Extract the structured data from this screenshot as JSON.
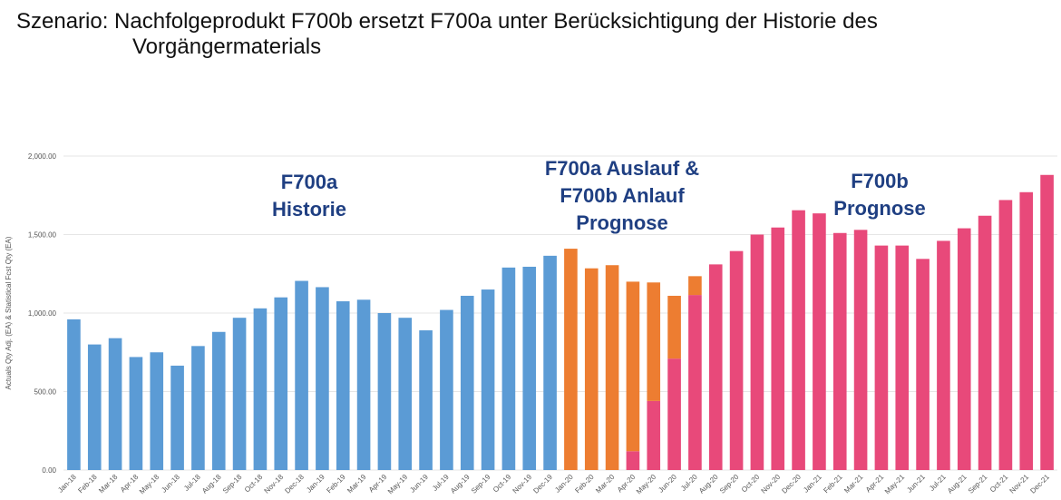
{
  "headline": {
    "line1": "Szenario:  Nachfolgeprodukt  F700b ersetzt F700a unter Berücksichtigung  der Historie des",
    "line2": "Vorgängermaterials"
  },
  "colors": {
    "historie": "#5b9bd5",
    "auslauf": "#ed7d31",
    "anlauf": "#e8497a",
    "grid": "#e6e6e6",
    "annotation": "#1f3f82"
  },
  "chart_data": {
    "type": "bar",
    "stacked": true,
    "ylabel": "Actuals Qty Adj. (EA) & Statistical Fcst Qty (EA)",
    "ylim": [
      0,
      2000
    ],
    "yticks": [
      "0.00",
      "500.00",
      "1,000.00",
      "1,500.00",
      "2,000.00"
    ],
    "grid": true,
    "categories": [
      "Jan-18",
      "Feb-18",
      "Mar-18",
      "Apr-18",
      "May-18",
      "Jun-18",
      "Jul-18",
      "Aug-18",
      "Sep-18",
      "Oct-18",
      "Nov-18",
      "Dec-18",
      "Jan-19",
      "Feb-19",
      "Mar-19",
      "Apr-19",
      "May-19",
      "Jun-19",
      "Jul-19",
      "Aug-19",
      "Sep-19",
      "Oct-19",
      "Nov-19",
      "Dec-19",
      "Jan-20",
      "Feb-20",
      "Mar-20",
      "Apr-20",
      "May-20",
      "Jun-20",
      "Jul-20",
      "Aug-20",
      "Sep-20",
      "Oct-20",
      "Nov-20",
      "Dec-20",
      "Jan-21",
      "Feb-21",
      "Mar-21",
      "Apr-21",
      "May-21",
      "Jun-21",
      "Jul-21",
      "Aug-21",
      "Sep-21",
      "Oct-21",
      "Nov-21",
      "Dec-21"
    ],
    "series": [
      {
        "key": "historie",
        "values": [
          960,
          800,
          840,
          720,
          750,
          665,
          790,
          880,
          970,
          1030,
          1100,
          1205,
          1165,
          1075,
          1085,
          1000,
          970,
          890,
          1020,
          1110,
          1150,
          1290,
          1295,
          1365,
          0,
          0,
          0,
          0,
          0,
          0,
          0,
          0,
          0,
          0,
          0,
          0,
          0,
          0,
          0,
          0,
          0,
          0,
          0,
          0,
          0,
          0,
          0,
          0
        ]
      },
      {
        "key": "anlauf",
        "values": [
          0,
          0,
          0,
          0,
          0,
          0,
          0,
          0,
          0,
          0,
          0,
          0,
          0,
          0,
          0,
          0,
          0,
          0,
          0,
          0,
          0,
          0,
          0,
          0,
          0,
          0,
          0,
          120,
          440,
          710,
          1115,
          1310,
          1395,
          1500,
          1545,
          1655,
          1635,
          1510,
          1530,
          1430,
          1430,
          1345,
          1460,
          1540,
          1620,
          1720,
          1770,
          1880
        ]
      },
      {
        "key": "auslauf",
        "values": [
          0,
          0,
          0,
          0,
          0,
          0,
          0,
          0,
          0,
          0,
          0,
          0,
          0,
          0,
          0,
          0,
          0,
          0,
          0,
          0,
          0,
          0,
          0,
          0,
          1410,
          1285,
          1305,
          1080,
          755,
          400,
          120,
          0,
          0,
          0,
          0,
          0,
          0,
          0,
          0,
          0,
          0,
          0,
          0,
          0,
          0,
          0,
          0,
          0
        ]
      }
    ],
    "annotations": [
      {
        "lines": [
          "F700a",
          "Historie"
        ]
      },
      {
        "lines": [
          "F700a Auslauf &",
          "F700b Anlauf",
          "Prognose"
        ]
      },
      {
        "lines": [
          "F700b",
          "Prognose"
        ]
      }
    ]
  }
}
